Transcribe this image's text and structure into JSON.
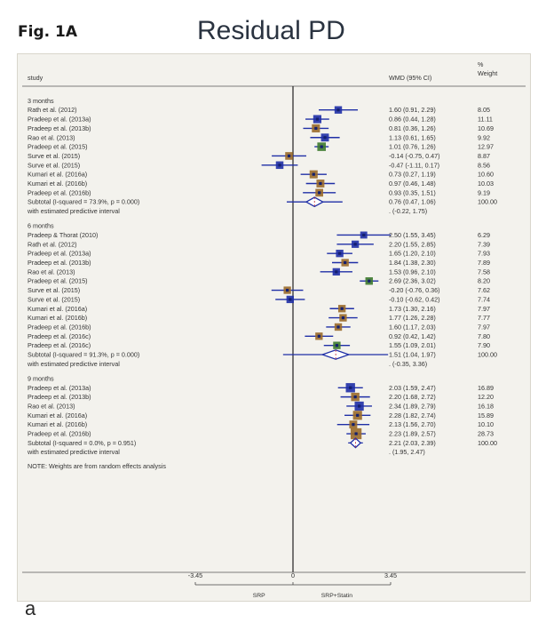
{
  "figure": {
    "label": "Fig. 1A",
    "title": "Residual PD",
    "panel_letter": "a"
  },
  "chart_data": {
    "type": "forest",
    "title": "Residual PD",
    "headers": {
      "study": "study",
      "wmd": "WMD (95% CI)",
      "weight_top": "%",
      "weight_bottom": "Weight"
    },
    "x_axis": {
      "ticks": [
        -3.45,
        0,
        3.45
      ],
      "tick_labels": [
        "-3.45",
        "0",
        "3.45"
      ],
      "left_label": "SRP",
      "right_label": "SRP+Statin",
      "range": [
        -3.45,
        3.45
      ]
    },
    "note": "NOTE: Weights are from random effects analysis",
    "groups": [
      {
        "name": "3 months",
        "studies": [
          {
            "label": "Rath et al. (2012)",
            "est": 1.6,
            "lo": 0.91,
            "hi": 2.29,
            "ci": "1.60 (0.91, 2.29)",
            "weight": "8.05",
            "color": "#1f2fa6"
          },
          {
            "label": "Pradeep et al. (2013a)",
            "est": 0.86,
            "lo": 0.44,
            "hi": 1.28,
            "ci": "0.86 (0.44, 1.28)",
            "weight": "11.11",
            "color": "#1f2fa6"
          },
          {
            "label": "Pradeep et al. (2013b)",
            "est": 0.81,
            "lo": 0.36,
            "hi": 1.26,
            "ci": "0.81 (0.36, 1.26)",
            "weight": "10.69",
            "color": "#9a6a2a"
          },
          {
            "label": "Rao et al. (2013)",
            "est": 1.13,
            "lo": 0.61,
            "hi": 1.65,
            "ci": "1.13 (0.61, 1.65)",
            "weight": "9.92",
            "color": "#1f2fa6"
          },
          {
            "label": "Pradeep et al. (2015)",
            "est": 1.01,
            "lo": 0.76,
            "hi": 1.26,
            "ci": "1.01 (0.76, 1.26)",
            "weight": "12.97",
            "color": "#3d7a2e"
          },
          {
            "label": "Surve et al. (2015)",
            "est": -0.14,
            "lo": -0.75,
            "hi": 0.47,
            "ci": "-0.14 (-0.75, 0.47)",
            "weight": "8.87",
            "color": "#9a6a2a"
          },
          {
            "label": "Surve et al. (2015)",
            "est": -0.47,
            "lo": -1.11,
            "hi": 0.17,
            "ci": "-0.47 (-1.11, 0.17)",
            "weight": "8.56",
            "color": "#1f2fa6"
          },
          {
            "label": "Kumari et al. (2016a)",
            "est": 0.73,
            "lo": 0.27,
            "hi": 1.19,
            "ci": "0.73 (0.27, 1.19)",
            "weight": "10.60",
            "color": "#9a6a2a"
          },
          {
            "label": "Kumari et al. (2016b)",
            "est": 0.97,
            "lo": 0.46,
            "hi": 1.48,
            "ci": "0.97 (0.46, 1.48)",
            "weight": "10.03",
            "color": "#9a6a2a"
          },
          {
            "label": "Pradeep et al. (2016b)",
            "est": 0.93,
            "lo": 0.35,
            "hi": 1.51,
            "ci": "0.93 (0.35, 1.51)",
            "weight": "9.19",
            "color": "#9a6a2a"
          }
        ],
        "subtotal": {
          "label": "Subtotal  (I-squared = 73.9%, p = 0.000)",
          "est": 0.76,
          "lo": 0.47,
          "hi": 1.06,
          "ci": "0.76 (0.47, 1.06)",
          "weight": "100.00"
        },
        "predictive": {
          "label": "with estimated predictive interval",
          "lo": -0.22,
          "hi": 1.75,
          "ci": ". (-0.22, 1.75)"
        }
      },
      {
        "name": "6 months",
        "studies": [
          {
            "label": "Pradeep & Thorat (2010)",
            "est": 2.5,
            "lo": 1.55,
            "hi": 3.45,
            "ci": "2.50 (1.55, 3.45)",
            "weight": "6.29",
            "color": "#1f2fa6"
          },
          {
            "label": "Rath et al. (2012)",
            "est": 2.2,
            "lo": 1.55,
            "hi": 2.85,
            "ci": "2.20 (1.55, 2.85)",
            "weight": "7.39",
            "color": "#1f2fa6"
          },
          {
            "label": "Pradeep et al. (2013a)",
            "est": 1.65,
            "lo": 1.2,
            "hi": 2.1,
            "ci": "1.65 (1.20, 2.10)",
            "weight": "7.93",
            "color": "#1f2fa6"
          },
          {
            "label": "Pradeep et al. (2013b)",
            "est": 1.84,
            "lo": 1.38,
            "hi": 2.3,
            "ci": "1.84 (1.38, 2.30)",
            "weight": "7.89",
            "color": "#9a6a2a"
          },
          {
            "label": "Rao et al. (2013)",
            "est": 1.53,
            "lo": 0.96,
            "hi": 2.1,
            "ci": "1.53 (0.96, 2.10)",
            "weight": "7.58",
            "color": "#1f2fa6"
          },
          {
            "label": "Pradeep et al. (2015)",
            "est": 2.69,
            "lo": 2.36,
            "hi": 3.02,
            "ci": "2.69 (2.36, 3.02)",
            "weight": "8.20",
            "color": "#3d7a2e"
          },
          {
            "label": "Surve et al. (2015)",
            "est": -0.2,
            "lo": -0.76,
            "hi": 0.36,
            "ci": "-0.20 (-0.76, 0.36)",
            "weight": "7.62",
            "color": "#9a6a2a"
          },
          {
            "label": "Surve et al. (2015)",
            "est": -0.1,
            "lo": -0.62,
            "hi": 0.42,
            "ci": "-0.10 (-0.62, 0.42)",
            "weight": "7.74",
            "color": "#1f2fa6"
          },
          {
            "label": "Kumari et al. (2016a)",
            "est": 1.73,
            "lo": 1.3,
            "hi": 2.16,
            "ci": "1.73 (1.30, 2.16)",
            "weight": "7.97",
            "color": "#9a6a2a"
          },
          {
            "label": "Kumari et al. (2016b)",
            "est": 1.77,
            "lo": 1.26,
            "hi": 2.28,
            "ci": "1.77 (1.26, 2.28)",
            "weight": "7.77",
            "color": "#9a6a2a"
          },
          {
            "label": "Pradeep et al. (2016b)",
            "est": 1.6,
            "lo": 1.17,
            "hi": 2.03,
            "ci": "1.60 (1.17, 2.03)",
            "weight": "7.97",
            "color": "#9a6a2a"
          },
          {
            "label": "Pradeep et al. (2016c)",
            "est": 0.92,
            "lo": 0.42,
            "hi": 1.42,
            "ci": "0.92 (0.42, 1.42)",
            "weight": "7.80",
            "color": "#9a6a2a"
          },
          {
            "label": "Pradeep et al. (2016c)",
            "est": 1.55,
            "lo": 1.09,
            "hi": 2.01,
            "ci": "1.55 (1.09, 2.01)",
            "weight": "7.90",
            "color": "#3d7a2e"
          }
        ],
        "subtotal": {
          "label": "Subtotal  (I-squared = 91.3%, p = 0.000)",
          "est": 1.51,
          "lo": 1.04,
          "hi": 1.97,
          "ci": "1.51 (1.04, 1.97)",
          "weight": "100.00"
        },
        "predictive": {
          "label": "with estimated predictive interval",
          "lo": -0.35,
          "hi": 3.36,
          "ci": ". (-0.35, 3.36)"
        }
      },
      {
        "name": "9 months",
        "studies": [
          {
            "label": "Pradeep et al. (2013a)",
            "est": 2.03,
            "lo": 1.59,
            "hi": 2.47,
            "ci": "2.03 (1.59, 2.47)",
            "weight": "16.89",
            "color": "#1f2fa6"
          },
          {
            "label": "Pradeep et al. (2013b)",
            "est": 2.2,
            "lo": 1.68,
            "hi": 2.72,
            "ci": "2.20 (1.68, 2.72)",
            "weight": "12.20",
            "color": "#9a6a2a"
          },
          {
            "label": "Rao et al. (2013)",
            "est": 2.34,
            "lo": 1.89,
            "hi": 2.79,
            "ci": "2.34 (1.89, 2.79)",
            "weight": "16.18",
            "color": "#1f2fa6"
          },
          {
            "label": "Kumari et al. (2016a)",
            "est": 2.28,
            "lo": 1.82,
            "hi": 2.74,
            "ci": "2.28 (1.82, 2.74)",
            "weight": "15.89",
            "color": "#9a6a2a"
          },
          {
            "label": "Kumari et al. (2016b)",
            "est": 2.13,
            "lo": 1.56,
            "hi": 2.7,
            "ci": "2.13 (1.56, 2.70)",
            "weight": "10.10",
            "color": "#9a6a2a"
          },
          {
            "label": "Pradeep et al. (2016b)",
            "est": 2.23,
            "lo": 1.89,
            "hi": 2.57,
            "ci": "2.23 (1.89, 2.57)",
            "weight": "28.73",
            "color": "#9a6a2a"
          }
        ],
        "subtotal": {
          "label": "Subtotal  (I-squared = 0.0%, p = 0.951)",
          "est": 2.21,
          "lo": 2.03,
          "hi": 2.39,
          "ci": "2.21 (2.03, 2.39)",
          "weight": "100.00"
        },
        "predictive": {
          "label": "with estimated predictive interval",
          "lo": 1.95,
          "hi": 2.47,
          "ci": ". (1.95, 2.47)"
        }
      }
    ]
  }
}
